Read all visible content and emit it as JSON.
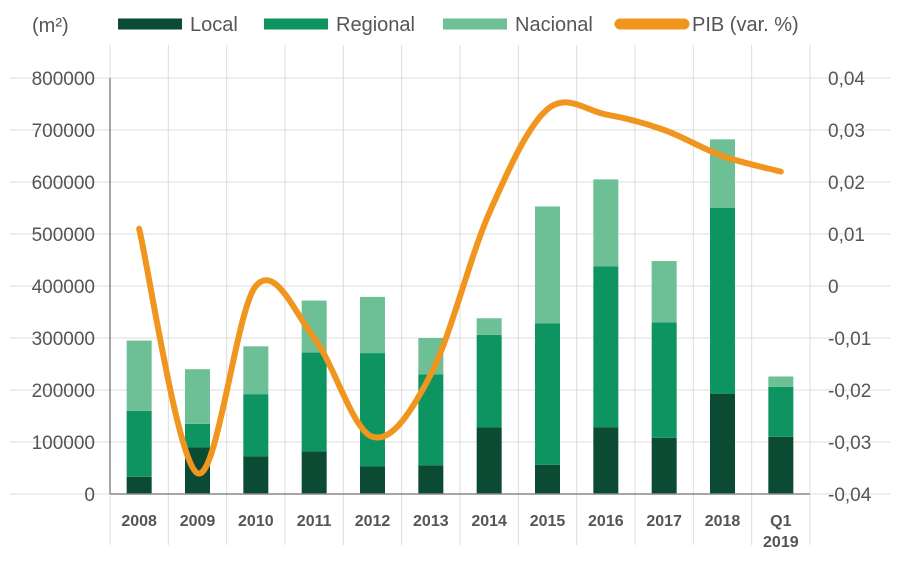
{
  "chart_data": {
    "type": "bar",
    "stacked": true,
    "unit_label": "(m²)",
    "categories": [
      "2008",
      "2009",
      "2010",
      "2011",
      "2012",
      "2013",
      "2014",
      "2015",
      "2016",
      "2017",
      "2018",
      "Q1 2019"
    ],
    "category_lines": [
      [
        "2008"
      ],
      [
        "2009"
      ],
      [
        "2010"
      ],
      [
        "2011"
      ],
      [
        "2012"
      ],
      [
        "2013"
      ],
      [
        "2014"
      ],
      [
        "2015"
      ],
      [
        "2016"
      ],
      [
        "2017"
      ],
      [
        "2018"
      ],
      [
        "Q1",
        "2019"
      ]
    ],
    "series": [
      {
        "name": "Local",
        "type": "bar",
        "axis": "left",
        "color": "#0b4a33",
        "values": [
          33000,
          90000,
          72000,
          82000,
          53000,
          55000,
          128000,
          56000,
          128000,
          108000,
          193000,
          110000
        ]
      },
      {
        "name": "Regional",
        "type": "bar",
        "axis": "left",
        "color": "#0e9460",
        "values": [
          127000,
          45000,
          120000,
          190000,
          218000,
          175000,
          178000,
          272000,
          310000,
          222000,
          357000,
          96000
        ]
      },
      {
        "name": "Nacional",
        "type": "bar",
        "axis": "left",
        "color": "#6dbf95",
        "values": [
          135000,
          105000,
          92000,
          100000,
          108000,
          70000,
          32000,
          225000,
          167000,
          118000,
          132000,
          20000
        ]
      },
      {
        "name": "PIB (var. %)",
        "type": "line",
        "axis": "right",
        "color": "#f0961e",
        "values": [
          0.011,
          -0.036,
          0.0,
          -0.01,
          -0.029,
          -0.017,
          0.014,
          0.034,
          0.033,
          0.03,
          0.025,
          0.022
        ]
      }
    ],
    "y_left": {
      "min": 0,
      "max": 800000,
      "ticks": [
        "0",
        "100000",
        "200000",
        "300000",
        "400000",
        "500000",
        "600000",
        "700000",
        "800000"
      ]
    },
    "y_right": {
      "min": -0.04,
      "max": 0.04,
      "ticks": [
        "-0,04",
        "-0,03",
        "-0,02",
        "-0,01",
        "0",
        "0,01",
        "0,02",
        "0,03",
        "0,04"
      ]
    },
    "grid": true,
    "legend_position": "top"
  }
}
